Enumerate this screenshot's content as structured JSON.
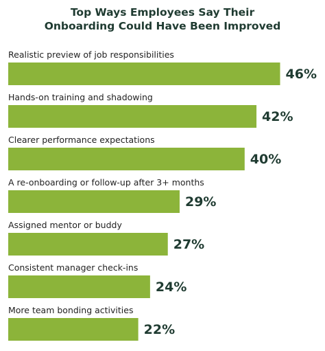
{
  "chart_data": {
    "type": "bar",
    "orientation": "horizontal",
    "title": "Top Ways Employees Say Their Onboarding Could Have Been Improved",
    "categories": [
      "Realistic preview of job responsibilities",
      "Hands-on training and shadowing",
      "Clearer performance expectations",
      "A re-onboarding or follow-up after 3+ months",
      "Assigned mentor or buddy",
      "Consistent manager check-ins",
      "More team bonding activities"
    ],
    "values": [
      46,
      42,
      40,
      29,
      27,
      24,
      22
    ],
    "value_labels": [
      "46%",
      "42%",
      "40%",
      "29%",
      "27%",
      "24%",
      "22%"
    ],
    "color": "#8cb43a"
  }
}
